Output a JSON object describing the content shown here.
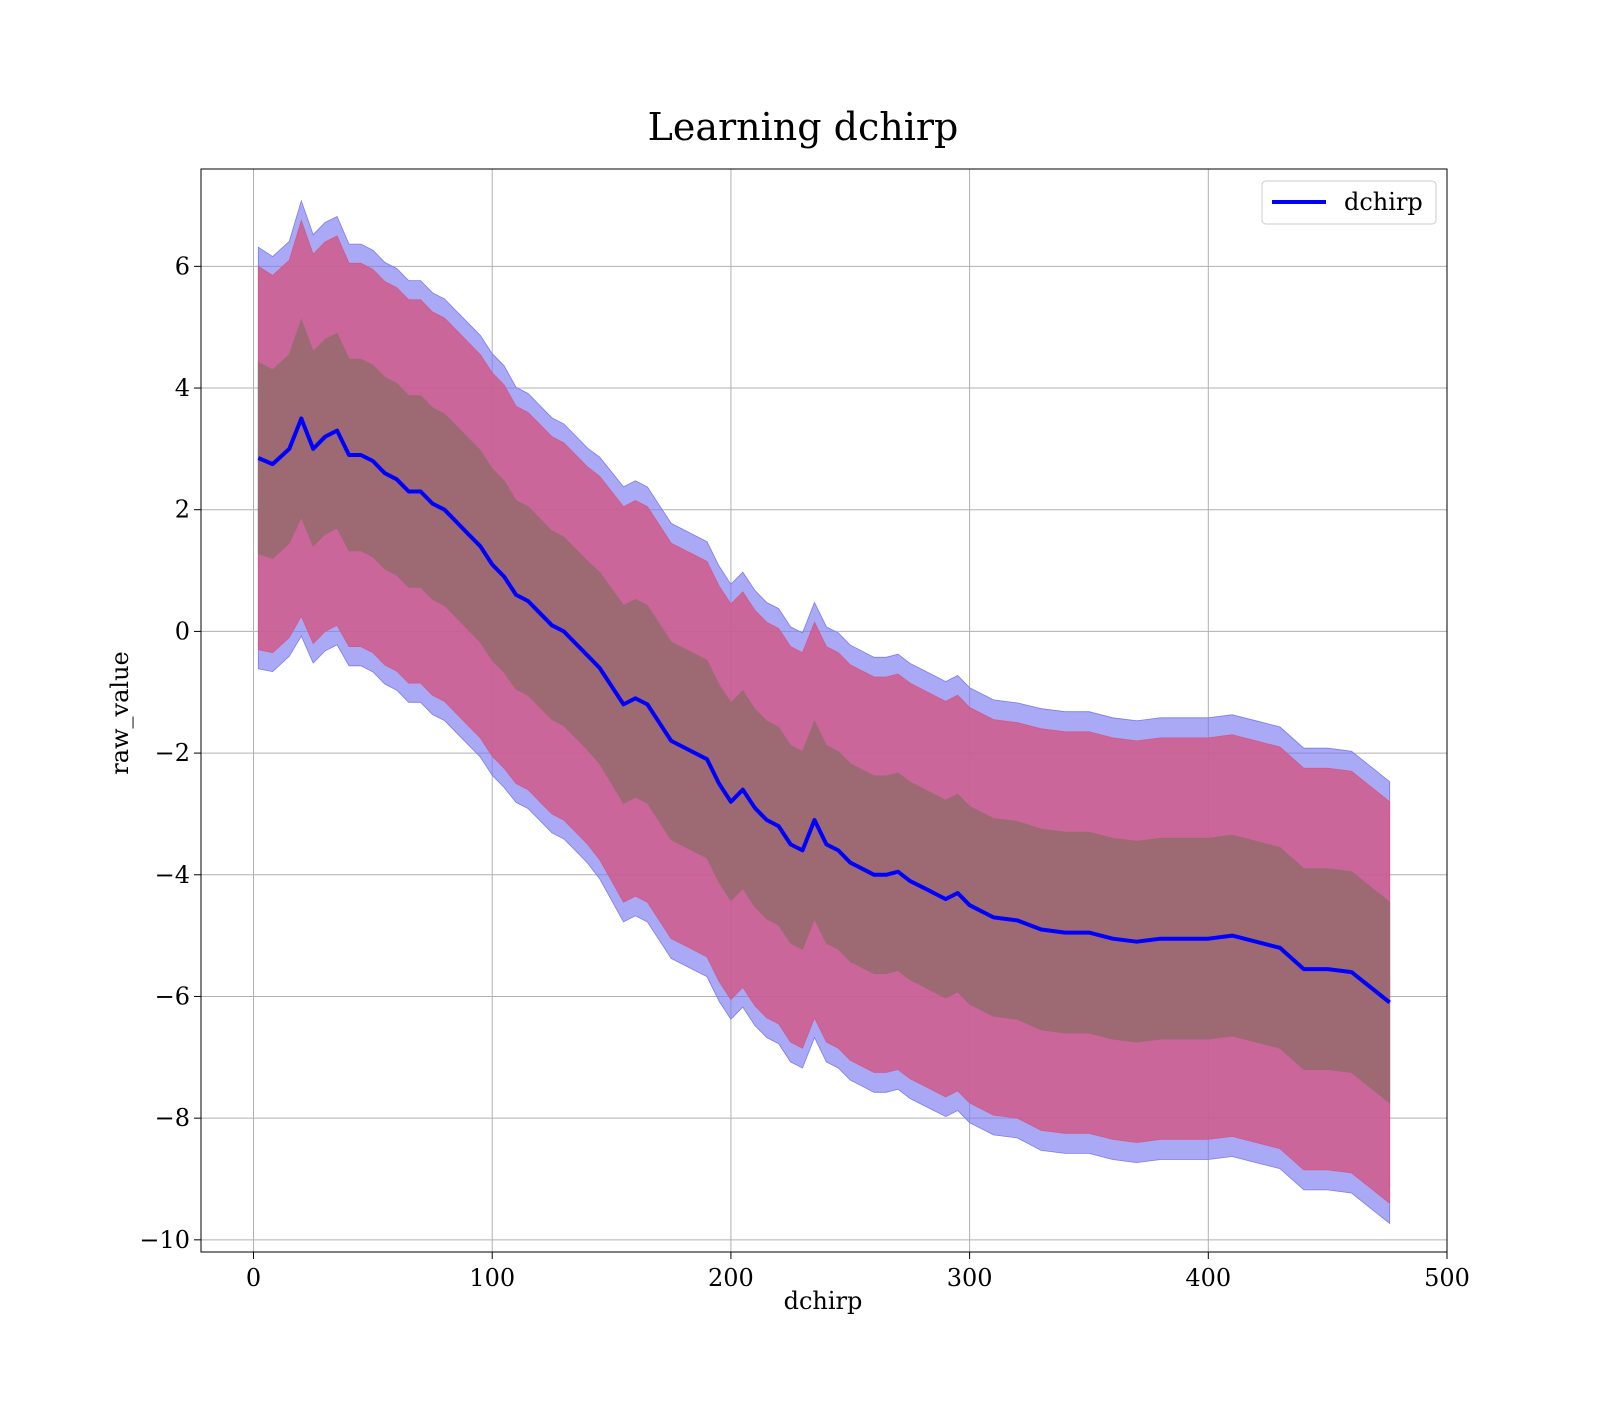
{
  "chart_data": {
    "type": "area",
    "title": "Learning dchirp",
    "xlabel": "dchirp",
    "ylabel": "raw_value",
    "xlim": [
      -22,
      500
    ],
    "ylim": [
      -10.2,
      7.6
    ],
    "xticks": [
      0,
      100,
      200,
      300,
      400,
      500
    ],
    "yticks": [
      -10,
      -8,
      -6,
      -4,
      -2,
      0,
      2,
      4,
      6
    ],
    "xtick_labels": [
      "0",
      "100",
      "200",
      "300",
      "400",
      "500"
    ],
    "ytick_labels": [
      "−10",
      "−8",
      "−6",
      "−4",
      "−2",
      "0",
      "2",
      "4",
      "6"
    ],
    "grid": true,
    "legend": {
      "position": "top-right",
      "entries": [
        "dchirp"
      ]
    },
    "colors": {
      "mean_line": "#0000ff",
      "outer_band_blue": "#7b7bf0",
      "outer_band_red": "#d05a8a",
      "inner_band": "#9a6a72",
      "grid": "#b0b0b0"
    },
    "series": [
      {
        "name": "dchirp",
        "x": [
          2,
          8,
          15,
          20,
          25,
          30,
          35,
          40,
          45,
          50,
          55,
          60,
          65,
          70,
          75,
          80,
          85,
          90,
          95,
          100,
          105,
          110,
          115,
          120,
          125,
          130,
          135,
          140,
          145,
          150,
          155,
          160,
          165,
          170,
          175,
          180,
          185,
          190,
          195,
          200,
          205,
          210,
          215,
          220,
          225,
          230,
          235,
          240,
          245,
          250,
          255,
          260,
          265,
          270,
          275,
          280,
          285,
          290,
          295,
          300,
          310,
          320,
          330,
          340,
          350,
          360,
          370,
          380,
          390,
          400,
          410,
          420,
          430,
          440,
          450,
          460,
          476
        ],
        "mean": [
          2.85,
          2.75,
          3.0,
          3.5,
          3.0,
          3.2,
          3.3,
          2.9,
          2.9,
          2.8,
          2.6,
          2.5,
          2.3,
          2.3,
          2.1,
          2.0,
          1.8,
          1.6,
          1.4,
          1.1,
          0.9,
          0.6,
          0.5,
          0.3,
          0.1,
          0.0,
          -0.2,
          -0.4,
          -0.6,
          -0.9,
          -1.2,
          -1.1,
          -1.2,
          -1.5,
          -1.8,
          -1.9,
          -2.0,
          -2.1,
          -2.5,
          -2.8,
          -2.6,
          -2.9,
          -3.1,
          -3.2,
          -3.5,
          -3.6,
          -3.1,
          -3.5,
          -3.6,
          -3.8,
          -3.9,
          -4.0,
          -4.0,
          -3.95,
          -4.1,
          -4.2,
          -4.3,
          -4.4,
          -4.3,
          -4.5,
          -4.7,
          -4.75,
          -4.9,
          -4.95,
          -4.95,
          -5.05,
          -5.1,
          -5.05,
          -5.05,
          -5.05,
          -5.0,
          -5.1,
          -5.2,
          -5.55,
          -5.55,
          -5.6,
          -6.1
        ],
        "std": [
          3.15,
          3.1,
          3.1,
          3.25,
          3.2,
          3.2,
          3.2,
          3.15,
          3.15,
          3.15,
          3.15,
          3.15,
          3.15,
          3.15,
          3.15,
          3.15,
          3.15,
          3.15,
          3.15,
          3.15,
          3.15,
          3.1,
          3.1,
          3.1,
          3.1,
          3.1,
          3.1,
          3.1,
          3.15,
          3.2,
          3.25,
          3.25,
          3.25,
          3.25,
          3.25,
          3.25,
          3.25,
          3.25,
          3.25,
          3.25,
          3.25,
          3.25,
          3.25,
          3.25,
          3.25,
          3.25,
          3.25,
          3.25,
          3.25,
          3.25,
          3.25,
          3.25,
          3.25,
          3.25,
          3.25,
          3.25,
          3.25,
          3.25,
          3.25,
          3.25,
          3.25,
          3.25,
          3.3,
          3.3,
          3.3,
          3.3,
          3.3,
          3.3,
          3.3,
          3.3,
          3.3,
          3.3,
          3.3,
          3.3,
          3.3,
          3.3,
          3.3
        ]
      }
    ]
  }
}
